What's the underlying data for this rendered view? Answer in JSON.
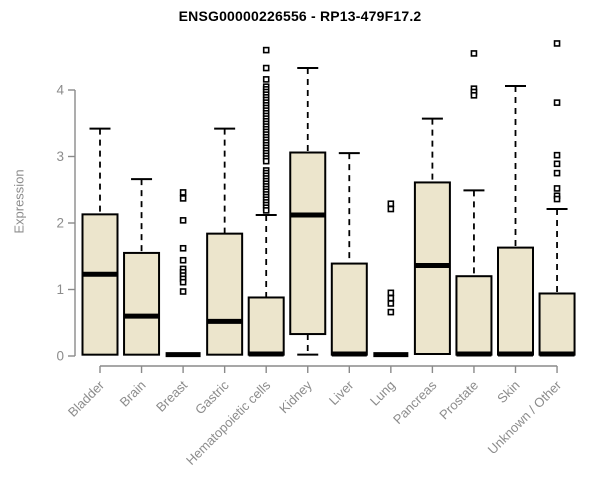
{
  "colors": {
    "box_fill": "#ece5cc",
    "box_border": "#000000",
    "median": "#000000",
    "whisker": "#000000",
    "outlier": "#000000",
    "axis": "#8a8a8a",
    "tick_label": "#8c8c8c",
    "title": "#000000",
    "background": "#ffffff"
  },
  "chart_data": {
    "type": "boxplot",
    "title": "ENSG00000226556 - RP13-479F17.2",
    "xlabel": "",
    "ylabel": "Expression",
    "ylim": [
      0,
      4.7
    ],
    "yticks": [
      0,
      1,
      2,
      3,
      4
    ],
    "grid": false,
    "legend": false,
    "categories": [
      "Bladder",
      "Brain",
      "Breast",
      "Gastric",
      "Hematopoietic cells",
      "Kidney",
      "Liver",
      "Lung",
      "Pancreas",
      "Prostate",
      "Skin",
      "Unknown / Other"
    ],
    "boxes": [
      {
        "category": "Bladder",
        "whisker_low": 0.02,
        "q1": 0.02,
        "median": 1.23,
        "q3": 2.13,
        "whisker_high": 3.42,
        "outliers": []
      },
      {
        "category": "Brain",
        "whisker_low": 0.02,
        "q1": 0.02,
        "median": 0.6,
        "q3": 1.55,
        "whisker_high": 2.66,
        "outliers": []
      },
      {
        "category": "Breast",
        "whisker_low": 0.02,
        "q1": 0.02,
        "median": 0.02,
        "q3": 0.02,
        "whisker_high": 0.02,
        "outliers": [
          2.46,
          2.37,
          2.04,
          1.62,
          1.44,
          1.31,
          1.26,
          1.21,
          1.16,
          1.11,
          0.97
        ]
      },
      {
        "category": "Gastric",
        "whisker_low": 0.02,
        "q1": 0.02,
        "median": 0.52,
        "q3": 1.84,
        "whisker_high": 3.42,
        "outliers": []
      },
      {
        "category": "Hematopoietic cells",
        "whisker_low": 0.02,
        "q1": 0.02,
        "median": 0.03,
        "q3": 0.88,
        "whisker_high": 2.12,
        "outliers": [
          4.6,
          4.33,
          4.16,
          4.05,
          4.01,
          3.97,
          3.93,
          3.89,
          3.85,
          3.81,
          3.77,
          3.73,
          3.69,
          3.65,
          3.61,
          3.57,
          3.53,
          3.49,
          3.45,
          3.41,
          3.37,
          3.33,
          3.29,
          3.25,
          3.21,
          3.17,
          3.13,
          3.09,
          3.05,
          3.01,
          2.97,
          2.93,
          2.79,
          2.75,
          2.71,
          2.67,
          2.63,
          2.59,
          2.55,
          2.51,
          2.47,
          2.43,
          2.39,
          2.35,
          2.31,
          2.27,
          2.23,
          2.19
        ]
      },
      {
        "category": "Kidney",
        "whisker_low": 0.02,
        "q1": 0.33,
        "median": 2.12,
        "q3": 3.06,
        "whisker_high": 4.33,
        "outliers": []
      },
      {
        "category": "Liver",
        "whisker_low": 0.02,
        "q1": 0.02,
        "median": 0.03,
        "q3": 1.39,
        "whisker_high": 3.05,
        "outliers": []
      },
      {
        "category": "Lung",
        "whisker_low": 0.02,
        "q1": 0.02,
        "median": 0.02,
        "q3": 0.02,
        "whisker_high": 0.02,
        "outliers": [
          2.29,
          2.21,
          0.95,
          0.87,
          0.79,
          0.66
        ]
      },
      {
        "category": "Pancreas",
        "whisker_low": 0.03,
        "q1": 0.03,
        "median": 1.36,
        "q3": 2.61,
        "whisker_high": 3.57,
        "outliers": []
      },
      {
        "category": "Prostate",
        "whisker_low": 0.02,
        "q1": 0.02,
        "median": 0.03,
        "q3": 1.2,
        "whisker_high": 2.49,
        "outliers": [
          4.55,
          4.02,
          3.97,
          3.92
        ]
      },
      {
        "category": "Skin",
        "whisker_low": 0.02,
        "q1": 0.02,
        "median": 0.03,
        "q3": 1.63,
        "whisker_high": 4.06,
        "outliers": []
      },
      {
        "category": "Unknown / Other",
        "whisker_low": 0.02,
        "q1": 0.02,
        "median": 0.03,
        "q3": 0.94,
        "whisker_high": 2.21,
        "outliers": [
          4.7,
          3.81,
          3.02,
          2.89,
          2.75,
          2.52,
          2.41,
          2.36
        ]
      }
    ]
  }
}
